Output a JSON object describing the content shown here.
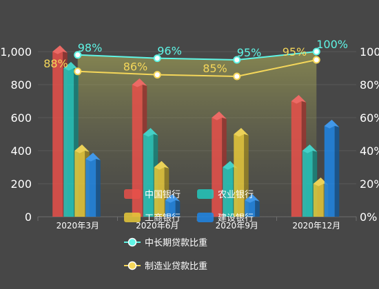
{
  "chart_data": {
    "type": "bar",
    "categories": [
      "2020年3月",
      "2020年6月",
      "2020年9月",
      "2020年12月"
    ],
    "series": [
      {
        "name": "中国银行",
        "kind": "bar",
        "values": [
          1000,
          800,
          600,
          700
        ],
        "color": "#e8504a"
      },
      {
        "name": "农业银行",
        "kind": "bar",
        "values": [
          900,
          500,
          300,
          400
        ],
        "color": "#23c8bd"
      },
      {
        "name": "工商银行",
        "kind": "bar",
        "values": [
          400,
          300,
          500,
          200
        ],
        "color": "#e8c93a"
      },
      {
        "name": "建设银行",
        "kind": "bar",
        "values": [
          350,
          100,
          100,
          550
        ],
        "color": "#1f86e6"
      }
    ],
    "lines": [
      {
        "name": "中长期贷款比重",
        "values": [
          98,
          96,
          95,
          100
        ],
        "color": "#5ff5e6",
        "labels": [
          "98%",
          "96%",
          "95%",
          "100%"
        ]
      },
      {
        "name": "制造业贷款比重",
        "values": [
          88,
          86,
          85,
          95
        ],
        "color": "#f5d75a",
        "labels": [
          "88%",
          "86%",
          "85%",
          "95%"
        ]
      }
    ],
    "ylim_left": [
      0,
      1000
    ],
    "yticks_left": [
      "0",
      "200",
      "400",
      "600",
      "800",
      "1,000"
    ],
    "ylim_right": [
      0,
      100
    ],
    "yticks_right": [
      "0%",
      "20%",
      "40%",
      "60%",
      "80%",
      "100%"
    ],
    "grid": true,
    "legend": "bottom-center"
  }
}
